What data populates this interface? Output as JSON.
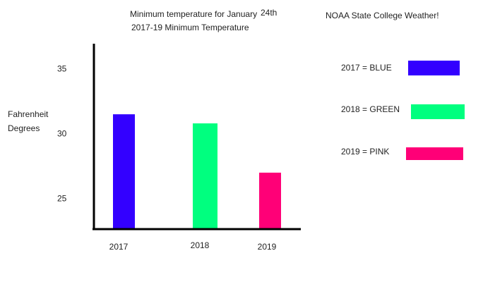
{
  "chart_data": {
    "type": "bar",
    "title": "Minimum temperature for January",
    "title_suffix": "24th",
    "subtitle": "2017-19 Minimum Temperature",
    "source": "NOAA State College Weather!",
    "ylabel_lines": [
      "Fahrenheit",
      "Degrees"
    ],
    "xlabel": "",
    "categories": [
      "2017",
      "2018",
      "2019"
    ],
    "values": [
      31.5,
      30.8,
      27.0
    ],
    "colors": [
      "#3300ff",
      "#00ff7f",
      "#ff0077"
    ],
    "yticks": [
      25,
      30,
      35
    ],
    "ylim": [
      22.7,
      37.0
    ],
    "grid": false,
    "legend_position": "right",
    "legend": [
      {
        "label": "2017 = BLUE",
        "color": "#3300ff"
      },
      {
        "label": "2018 = GREEN",
        "color": "#00ff7f"
      },
      {
        "label": "2019 = PINK",
        "color": "#ff0077"
      }
    ]
  }
}
